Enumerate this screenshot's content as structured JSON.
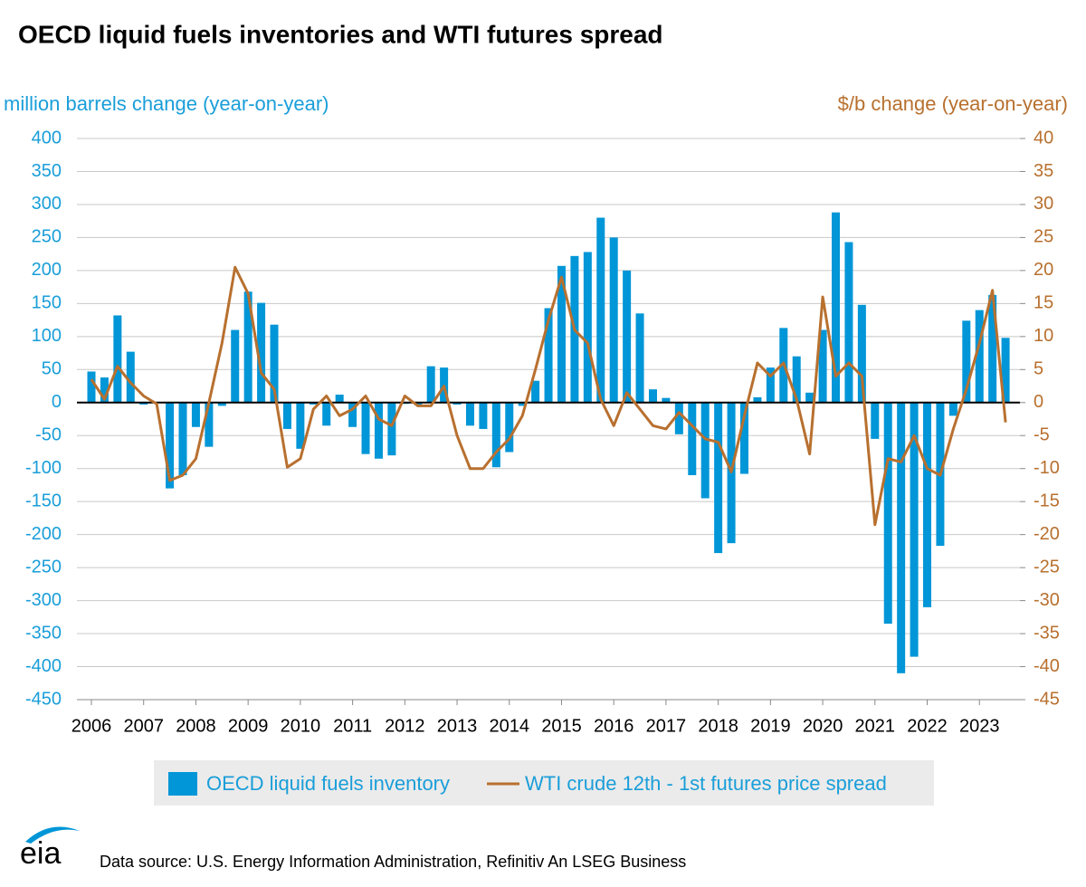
{
  "chart_data": {
    "type": "bar-line",
    "title": "OECD liquid fuels inventories and WTI futures spread",
    "y_label": "million barrels change (year-on-year)",
    "y2_label": "$/b change (year-on-year)",
    "categories": [
      "2006",
      null,
      null,
      null,
      "2007",
      null,
      null,
      null,
      "2008",
      null,
      null,
      null,
      "2009",
      null,
      null,
      null,
      "2010",
      null,
      null,
      null,
      "2011",
      null,
      null,
      null,
      "2012",
      null,
      null,
      null,
      "2013",
      null,
      null,
      null,
      "2014",
      null,
      null,
      null,
      "2015",
      null,
      null,
      null,
      "2016",
      null,
      null,
      null,
      "2017",
      null,
      null,
      null,
      "2018",
      null,
      null,
      null,
      "2019",
      null,
      null,
      null,
      "2020",
      null,
      null,
      null,
      "2021",
      null,
      null,
      null,
      "2022",
      null,
      null,
      null,
      "2023",
      null,
      null
    ],
    "series": [
      {
        "name": "OECD liquid fuels inventory",
        "type": "bar",
        "color": "#0096d7",
        "values": [
          47,
          38,
          132,
          77,
          -3,
          0,
          -130,
          -110,
          -37,
          -67,
          -5,
          110,
          168,
          151,
          118,
          -40,
          -70,
          -3,
          -35,
          12,
          -37,
          -78,
          -85,
          -80,
          -2,
          -3,
          55,
          53,
          -3,
          -35,
          -40,
          -98,
          -75,
          -5,
          33,
          143,
          207,
          222,
          228,
          280,
          250,
          200,
          135,
          20,
          7,
          -48,
          -110,
          -145,
          -228,
          -213,
          -108,
          8,
          53,
          113,
          70,
          15,
          110,
          288,
          243,
          148,
          -55,
          -335,
          -410,
          -385,
          -310,
          -217,
          -20,
          124,
          140,
          163,
          98
        ]
      },
      {
        "name": "WTI crude 12th - 1st futures price spread",
        "type": "line",
        "axis": "y2",
        "color": "#b8702f",
        "values": [
          3.5,
          0.5,
          5.5,
          3,
          1,
          -0.2,
          -11.8,
          -11,
          -8.5,
          0,
          9,
          20.5,
          16.5,
          4.5,
          2,
          -9.8,
          -8.5,
          -1,
          1,
          -2,
          -1,
          1,
          -2.5,
          -3.5,
          1,
          -0.5,
          -0.5,
          2.5,
          -5,
          -10,
          -10,
          -7.5,
          -5.5,
          -2,
          5,
          12.5,
          19,
          11,
          9,
          0.5,
          -3.5,
          1.5,
          -1,
          -3.5,
          -4,
          -1.5,
          -3.5,
          -5.5,
          -6,
          -10.5,
          -2,
          6,
          4,
          6,
          0.5,
          -7.8,
          16,
          4,
          6,
          4,
          -18.5,
          -8.5,
          -9,
          -5,
          -10,
          -11,
          -4,
          2,
          9,
          17,
          -3
        ]
      }
    ],
    "ylim": [
      -450,
      400
    ],
    "yticks": [
      400,
      350,
      300,
      250,
      200,
      150,
      100,
      50,
      0,
      -50,
      -100,
      -150,
      -200,
      -250,
      -300,
      -350,
      -400,
      -450
    ],
    "y2lim": [
      -45,
      40
    ],
    "y2ticks": [
      40,
      35,
      30,
      25,
      20,
      15,
      10,
      5,
      0,
      -5,
      -10,
      -15,
      -20,
      -25,
      -30,
      -35,
      -40,
      -45
    ],
    "grid": true,
    "legend": "bottom",
    "source": "Data source: U.S. Energy Information Administration, Refinitiv An LSEG Business",
    "logo": "eia"
  }
}
